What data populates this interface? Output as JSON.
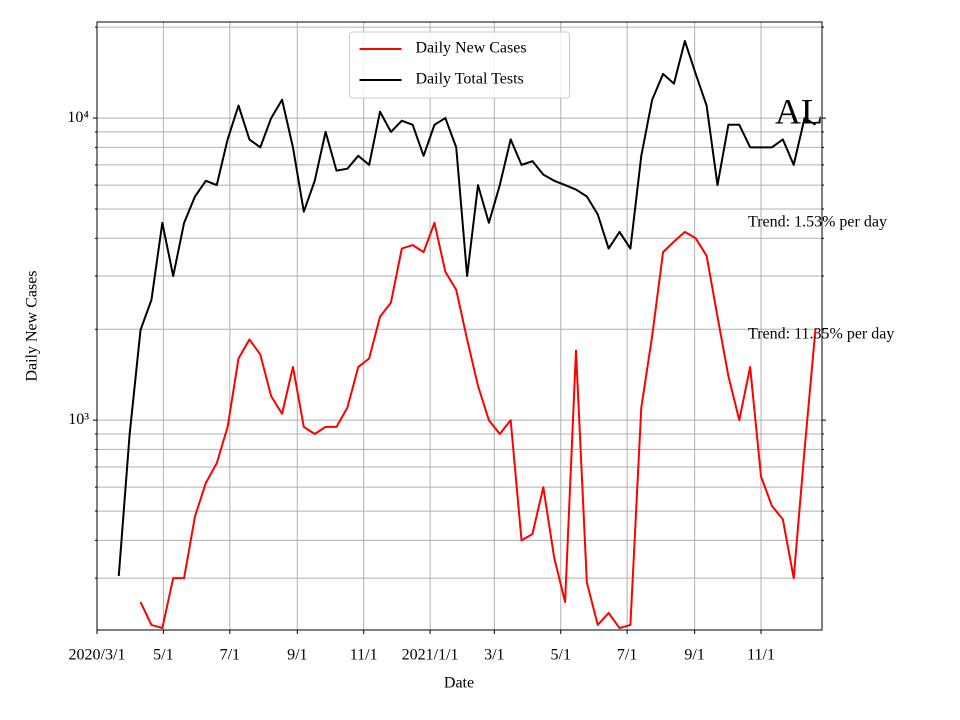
{
  "chart_data": {
    "type": "line",
    "xlabel": "Date",
    "ylabel": "Daily New Cases",
    "x": [
      "2020-03-01",
      "2020-03-11",
      "2020-03-21",
      "2020-03-31",
      "2020-04-10",
      "2020-04-20",
      "2020-04-30",
      "2020-05-10",
      "2020-05-20",
      "2020-05-30",
      "2020-06-09",
      "2020-06-19",
      "2020-06-29",
      "2020-07-09",
      "2020-07-19",
      "2020-07-29",
      "2020-08-08",
      "2020-08-18",
      "2020-08-28",
      "2020-09-07",
      "2020-09-17",
      "2020-09-27",
      "2020-10-07",
      "2020-10-17",
      "2020-10-27",
      "2020-11-06",
      "2020-11-16",
      "2020-11-26",
      "2020-12-06",
      "2020-12-16",
      "2020-12-26",
      "2021-01-05",
      "2021-01-15",
      "2021-01-25",
      "2021-02-04",
      "2021-02-14",
      "2021-02-24",
      "2021-03-06",
      "2021-03-16",
      "2021-03-26",
      "2021-04-05",
      "2021-04-15",
      "2021-04-25",
      "2021-05-05",
      "2021-05-15",
      "2021-05-25",
      "2021-06-04",
      "2021-06-14",
      "2021-06-24",
      "2021-07-04",
      "2021-07-14",
      "2021-07-24",
      "2021-08-03",
      "2021-08-13",
      "2021-08-23",
      "2021-09-02",
      "2021-09-12",
      "2021-09-22",
      "2021-10-02",
      "2021-10-12",
      "2021-10-22",
      "2021-11-01",
      "2021-11-11",
      "2021-11-21",
      "2021-12-01",
      "2021-12-11",
      "2021-12-21"
    ],
    "series": [
      {
        "name": "Daily New Cases",
        "color": "#ff0000",
        "values": [
          null,
          null,
          null,
          null,
          250,
          210,
          205,
          300,
          300,
          480,
          620,
          720,
          950,
          1600,
          1850,
          1650,
          1200,
          1050,
          1500,
          950,
          900,
          950,
          950,
          1100,
          1500,
          1600,
          2200,
          2450,
          3700,
          3800,
          3600,
          4500,
          3100,
          2700,
          1850,
          1300,
          1000,
          900,
          1000,
          400,
          420,
          600,
          350,
          250,
          1700,
          290,
          210,
          230,
          205,
          210,
          1100,
          1900,
          3600,
          3900,
          4200,
          4000,
          3500,
          2200,
          1400,
          1000,
          1500,
          650,
          520,
          470,
          300,
          800,
          2000
        ]
      },
      {
        "name": "Daily Total Tests",
        "color": "#000000",
        "values": [
          null,
          null,
          305,
          900,
          1990,
          2500,
          4500,
          3000,
          4500,
          5500,
          6200,
          6000,
          8500,
          11000,
          8500,
          8000,
          10000,
          11500,
          8000,
          4900,
          6200,
          9000,
          6700,
          6800,
          7500,
          7000,
          10500,
          9000,
          9800,
          9500,
          7500,
          9500,
          10000,
          8000,
          3000,
          6000,
          4500,
          6000,
          8500,
          7000,
          7200,
          6500,
          6200,
          6000,
          5800,
          5500,
          4800,
          3700,
          4200,
          3700,
          7500,
          11500,
          14000,
          13000,
          18000,
          14000,
          11000,
          6000,
          9500,
          9500,
          8000,
          8000,
          8000,
          8500,
          7000,
          10000,
          9500
        ]
      }
    ],
    "xlim": [
      "2020-03-01",
      "2021-12-27"
    ],
    "xticks": [
      {
        "value": "2020-03-01",
        "label": "2020/3/1"
      },
      {
        "value": "2020-05-01",
        "label": "5/1"
      },
      {
        "value": "2020-07-01",
        "label": "7/1"
      },
      {
        "value": "2020-09-01",
        "label": "9/1"
      },
      {
        "value": "2020-11-01",
        "label": "11/1"
      },
      {
        "value": "2021-01-01",
        "label": "2021/1/1"
      },
      {
        "value": "2021-03-01",
        "label": "3/1"
      },
      {
        "value": "2021-05-01",
        "label": "5/1"
      },
      {
        "value": "2021-07-01",
        "label": "7/1"
      },
      {
        "value": "2021-09-01",
        "label": "9/1"
      },
      {
        "value": "2021-11-01",
        "label": "11/1"
      }
    ],
    "ylim": [
      202,
      20800
    ],
    "ylog": true,
    "yticks": [
      {
        "value": 1000,
        "label": "10³"
      },
      {
        "value": 10000,
        "label": "10⁴"
      }
    ],
    "yminorticks": [
      300,
      400,
      500,
      600,
      700,
      800,
      900,
      2000,
      3000,
      4000,
      5000,
      6000,
      7000,
      8000,
      9000,
      20000
    ],
    "grid": true,
    "legend": "upper center",
    "annotations": [
      "AL",
      "Trend: 1.53% per day",
      "Trend: 11.35% per day"
    ]
  }
}
